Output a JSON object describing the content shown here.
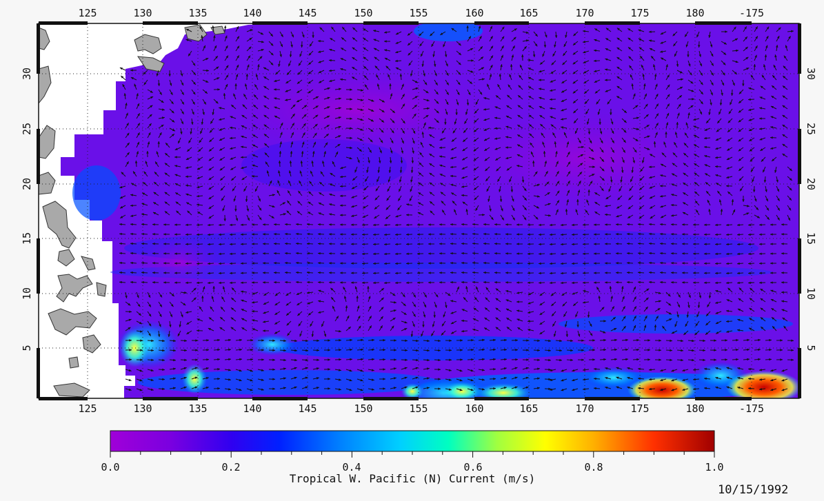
{
  "map": {
    "lon_ticks_top": [
      "125",
      "130",
      "135",
      "140",
      "145",
      "150",
      "155",
      "160",
      "165",
      "170",
      "175",
      "180",
      "-175"
    ],
    "lon_ticks_bottom": [
      "125",
      "130",
      "135",
      "140",
      "145",
      "150",
      "155",
      "160",
      "165",
      "170",
      "175",
      "180",
      "-175"
    ],
    "lat_ticks_left": [
      "5",
      "10",
      "15",
      "20",
      "25",
      "30"
    ],
    "lat_ticks_right": [
      "5",
      "10",
      "15",
      "20",
      "25",
      "30"
    ],
    "gridlines": true,
    "land_color": "#a9a9a9",
    "ocean_background_color": "#ffffff"
  },
  "colorbar": {
    "ticks": [
      "0.0",
      "0.2",
      "0.4",
      "0.6",
      "0.8",
      "1.0"
    ],
    "label": "Tropical W. Pacific (N) Current (m/s)",
    "colors": [
      "#a000d8",
      "#7a00e0",
      "#3000f0",
      "#0020ff",
      "#0080ff",
      "#00d0ff",
      "#00ffc0",
      "#a0ff40",
      "#ffff00",
      "#ffb000",
      "#ff3000",
      "#a00000"
    ]
  },
  "date": "10/15/1992"
}
